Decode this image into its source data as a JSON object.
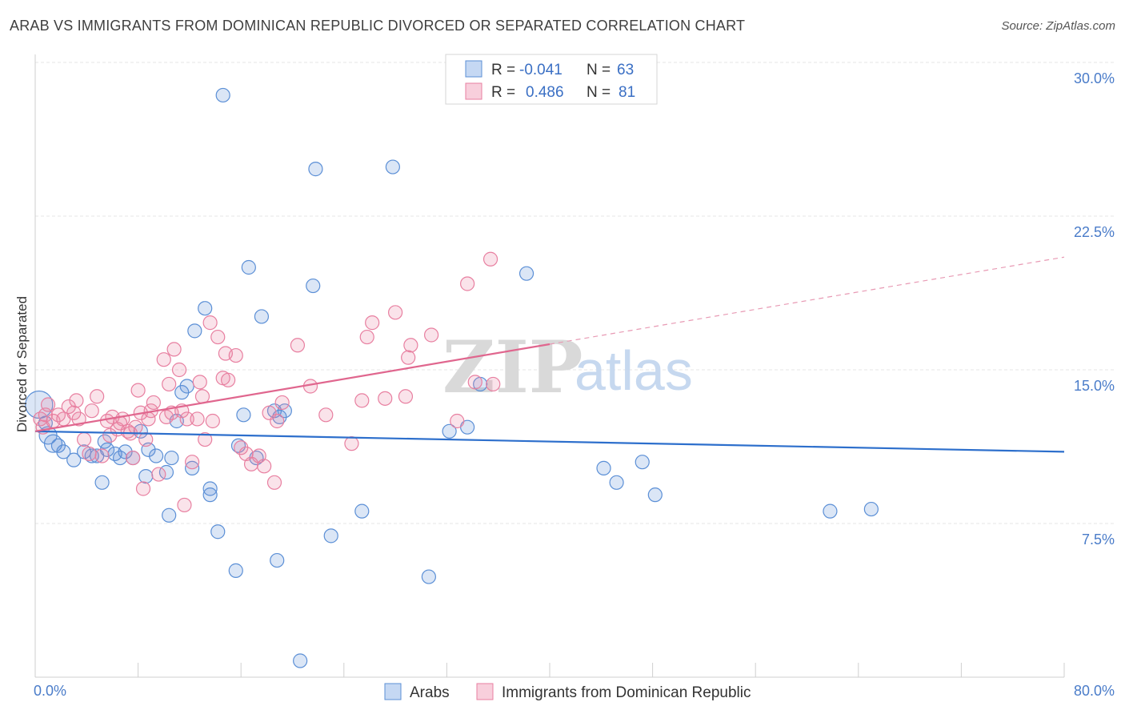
{
  "title": "ARAB VS IMMIGRANTS FROM DOMINICAN REPUBLIC DIVORCED OR SEPARATED CORRELATION CHART",
  "source": "Source: ZipAtlas.com",
  "watermark": {
    "zip": "ZIP",
    "atlas": "atlas"
  },
  "legend": {
    "r_label": "R =",
    "n_label": "N =",
    "rows": [
      {
        "r": "-0.041",
        "n": "63",
        "color": "#5b8fd6"
      },
      {
        "r": "0.486",
        "n": "81",
        "color": "#e87fa0"
      }
    ]
  },
  "bottom_legend": [
    {
      "label": "Arabs",
      "color": "#5b8fd6"
    },
    {
      "label": "Immigrants from Dominican Republic",
      "color": "#e87fa0"
    }
  ],
  "chart_data": {
    "type": "scatter",
    "title": "ARAB VS IMMIGRANTS FROM DOMINICAN REPUBLIC DIVORCED OR SEPARATED CORRELATION CHART",
    "xlabel": "",
    "ylabel": "Divorced or Separated",
    "xlim": [
      0,
      80
    ],
    "ylim": [
      0,
      30
    ],
    "x_tick_labels": [
      "0.0%",
      "80.0%"
    ],
    "y_ticks": [
      7.5,
      15.0,
      22.5,
      30.0
    ],
    "y_tick_labels": [
      "7.5%",
      "15.0%",
      "22.5%",
      "30.0%"
    ],
    "grid": true,
    "series": [
      {
        "name": "Arabs",
        "color": "#5b8fd6",
        "trend": {
          "x": [
            0,
            80
          ],
          "y": [
            12.0,
            11.0
          ],
          "dashed_from": null
        },
        "points": [
          [
            0.3,
            13.3
          ],
          [
            0.8,
            12.4
          ],
          [
            1.0,
            11.8
          ],
          [
            1.4,
            11.4
          ],
          [
            1.8,
            11.3
          ],
          [
            2.2,
            11.0
          ],
          [
            3.0,
            10.6
          ],
          [
            3.8,
            11.0
          ],
          [
            4.4,
            10.8
          ],
          [
            4.8,
            10.8
          ],
          [
            5.2,
            9.5
          ],
          [
            5.4,
            11.5
          ],
          [
            5.6,
            11.1
          ],
          [
            6.2,
            10.9
          ],
          [
            6.6,
            10.7
          ],
          [
            7.0,
            11.0
          ],
          [
            7.6,
            10.7
          ],
          [
            8.2,
            12.0
          ],
          [
            8.6,
            9.8
          ],
          [
            8.8,
            11.1
          ],
          [
            9.4,
            10.8
          ],
          [
            10.2,
            10.0
          ],
          [
            10.4,
            7.9
          ],
          [
            10.6,
            10.7
          ],
          [
            11.0,
            12.5
          ],
          [
            11.4,
            13.9
          ],
          [
            11.8,
            14.2
          ],
          [
            12.2,
            10.2
          ],
          [
            12.4,
            16.9
          ],
          [
            13.2,
            18.0
          ],
          [
            13.6,
            9.2
          ],
          [
            13.6,
            8.9
          ],
          [
            14.2,
            7.1
          ],
          [
            14.6,
            28.4
          ],
          [
            15.6,
            5.2
          ],
          [
            15.8,
            11.3
          ],
          [
            16.2,
            12.8
          ],
          [
            16.6,
            20.0
          ],
          [
            17.2,
            10.7
          ],
          [
            17.6,
            17.6
          ],
          [
            18.6,
            13.0
          ],
          [
            18.8,
            5.7
          ],
          [
            19.0,
            12.7
          ],
          [
            19.4,
            13.0
          ],
          [
            20.6,
            0.8
          ],
          [
            21.6,
            19.1
          ],
          [
            21.8,
            24.8
          ],
          [
            23.0,
            6.9
          ],
          [
            25.4,
            8.1
          ],
          [
            27.8,
            24.9
          ],
          [
            30.6,
            4.9
          ],
          [
            32.2,
            12.0
          ],
          [
            33.6,
            12.2
          ],
          [
            34.6,
            14.3
          ],
          [
            38.2,
            19.7
          ],
          [
            44.2,
            10.2
          ],
          [
            45.2,
            9.5
          ],
          [
            47.2,
            10.5
          ],
          [
            48.2,
            8.9
          ],
          [
            61.8,
            8.1
          ],
          [
            65.0,
            8.2
          ]
        ]
      },
      {
        "name": "Immigrants from Dominican Republic",
        "color": "#e87fa0",
        "trend": {
          "x": [
            0,
            80
          ],
          "y": [
            12.0,
            20.5
          ],
          "dashed_from": 40
        },
        "points": [
          [
            0.4,
            12.6
          ],
          [
            0.6,
            12.2
          ],
          [
            0.8,
            12.8
          ],
          [
            1.0,
            13.3
          ],
          [
            1.4,
            12.5
          ],
          [
            1.8,
            12.8
          ],
          [
            2.2,
            12.6
          ],
          [
            2.6,
            13.2
          ],
          [
            3.0,
            12.9
          ],
          [
            3.2,
            13.5
          ],
          [
            3.4,
            12.6
          ],
          [
            3.8,
            11.6
          ],
          [
            4.2,
            10.9
          ],
          [
            4.4,
            13.0
          ],
          [
            4.8,
            13.7
          ],
          [
            5.2,
            10.8
          ],
          [
            5.6,
            12.5
          ],
          [
            5.8,
            11.8
          ],
          [
            6.0,
            12.7
          ],
          [
            6.4,
            12.1
          ],
          [
            6.6,
            12.4
          ],
          [
            6.8,
            12.6
          ],
          [
            7.2,
            12.0
          ],
          [
            7.4,
            11.9
          ],
          [
            7.6,
            10.7
          ],
          [
            7.8,
            12.2
          ],
          [
            8.0,
            14.0
          ],
          [
            8.2,
            12.9
          ],
          [
            8.4,
            9.2
          ],
          [
            8.6,
            11.6
          ],
          [
            8.8,
            12.6
          ],
          [
            9.0,
            13.0
          ],
          [
            9.2,
            13.4
          ],
          [
            9.6,
            9.9
          ],
          [
            10.0,
            15.5
          ],
          [
            10.2,
            12.7
          ],
          [
            10.4,
            14.3
          ],
          [
            10.6,
            12.9
          ],
          [
            10.8,
            16.0
          ],
          [
            11.2,
            15.0
          ],
          [
            11.4,
            13.0
          ],
          [
            11.6,
            8.4
          ],
          [
            11.8,
            12.6
          ],
          [
            12.2,
            10.5
          ],
          [
            12.6,
            12.6
          ],
          [
            12.8,
            14.4
          ],
          [
            13.0,
            13.7
          ],
          [
            13.2,
            11.6
          ],
          [
            13.6,
            17.3
          ],
          [
            13.8,
            12.5
          ],
          [
            14.2,
            16.6
          ],
          [
            14.6,
            14.6
          ],
          [
            14.8,
            15.8
          ],
          [
            15.0,
            14.5
          ],
          [
            15.6,
            15.7
          ],
          [
            16.0,
            11.2
          ],
          [
            16.4,
            10.9
          ],
          [
            16.8,
            10.4
          ],
          [
            17.4,
            10.8
          ],
          [
            17.8,
            10.3
          ],
          [
            18.2,
            12.9
          ],
          [
            18.6,
            9.5
          ],
          [
            18.8,
            12.5
          ],
          [
            19.2,
            13.4
          ],
          [
            20.4,
            16.2
          ],
          [
            21.4,
            14.2
          ],
          [
            22.6,
            12.8
          ],
          [
            24.6,
            11.4
          ],
          [
            25.4,
            13.5
          ],
          [
            25.8,
            16.6
          ],
          [
            26.2,
            17.3
          ],
          [
            27.2,
            13.6
          ],
          [
            28.0,
            17.8
          ],
          [
            28.8,
            13.7
          ],
          [
            29.0,
            15.6
          ],
          [
            29.2,
            16.2
          ],
          [
            30.8,
            16.7
          ],
          [
            32.8,
            12.5
          ],
          [
            33.6,
            19.2
          ],
          [
            34.2,
            14.4
          ],
          [
            35.6,
            14.3
          ],
          [
            35.4,
            20.4
          ]
        ]
      }
    ]
  }
}
